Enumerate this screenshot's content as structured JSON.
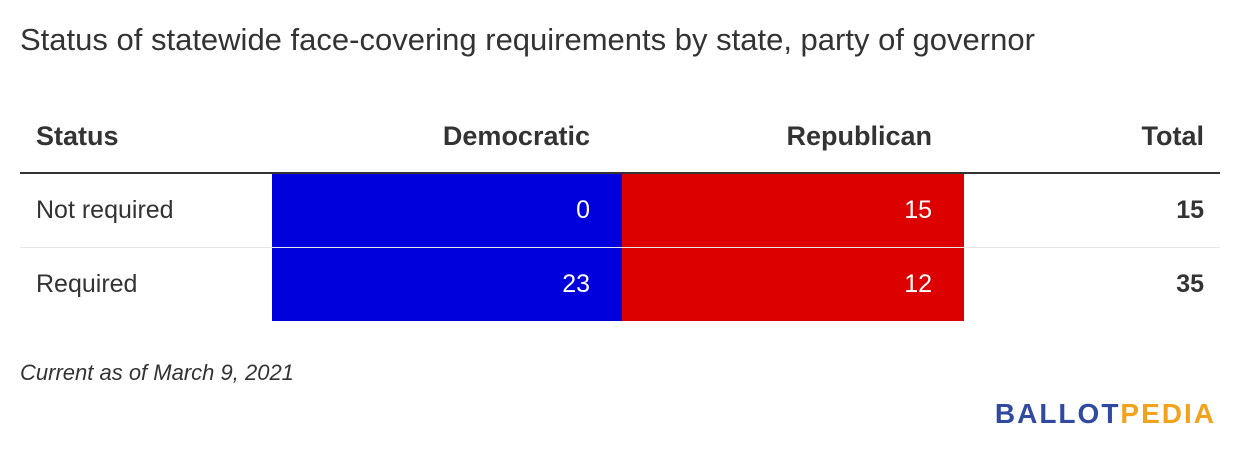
{
  "title": "Status of statewide face-covering requirements by state, party of governor",
  "columns": {
    "status": "Status",
    "democratic": "Democratic",
    "republican": "Republican",
    "total": "Total"
  },
  "rows": [
    {
      "status": "Not required",
      "democratic": "0",
      "republican": "15",
      "total": "15"
    },
    {
      "status": "Required",
      "democratic": "23",
      "republican": "12",
      "total": "35"
    }
  ],
  "note": "Current as of March 9, 2021",
  "logo": {
    "part1": "BALLOT",
    "part2": "PEDIA"
  },
  "colors": {
    "democratic": "#0000dd",
    "republican": "#dd0000",
    "logo_blue": "#2f4aa0",
    "logo_orange": "#f2a31b"
  },
  "chart_data": {
    "type": "table",
    "title": "Status of statewide face-covering requirements by state, party of governor",
    "columns": [
      "Status",
      "Democratic",
      "Republican",
      "Total"
    ],
    "rows": [
      [
        "Not required",
        0,
        15,
        15
      ],
      [
        "Required",
        23,
        12,
        35
      ]
    ]
  }
}
